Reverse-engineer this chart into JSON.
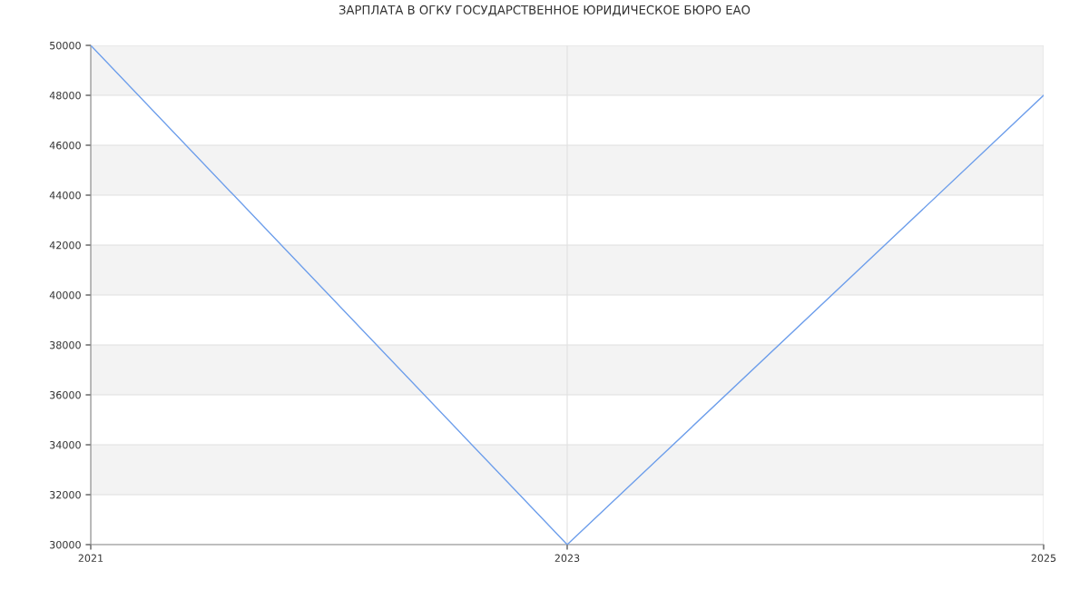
{
  "chart_data": {
    "type": "line",
    "title": "ЗАРПЛАТА В ОГКУ ГОСУДАРСТВЕННОЕ ЮРИДИЧЕСКОЕ БЮРО ЕАО",
    "x": [
      2021,
      2023,
      2025
    ],
    "series": [
      {
        "color": "#6d9eeb",
        "values": [
          50000,
          30000,
          48000
        ]
      }
    ],
    "xlim": [
      2021,
      2025
    ],
    "xticks": [
      2021,
      2023,
      2025
    ],
    "ylim": [
      30000,
      50000
    ],
    "yticks": [
      30000,
      32000,
      34000,
      36000,
      38000,
      40000,
      42000,
      44000,
      46000,
      48000,
      50000
    ],
    "bands": [
      {
        "axis": "y",
        "from": 32000,
        "to": 34000,
        "color": "#f3f3f3"
      },
      {
        "axis": "y",
        "from": 36000,
        "to": 38000,
        "color": "#f3f3f3"
      },
      {
        "axis": "y",
        "from": 40000,
        "to": 42000,
        "color": "#f3f3f3"
      },
      {
        "axis": "y",
        "from": 44000,
        "to": 46000,
        "color": "#f3f3f3"
      },
      {
        "axis": "y",
        "from": 48000,
        "to": 50000,
        "color": "#f3f3f3"
      }
    ],
    "grid": true
  }
}
